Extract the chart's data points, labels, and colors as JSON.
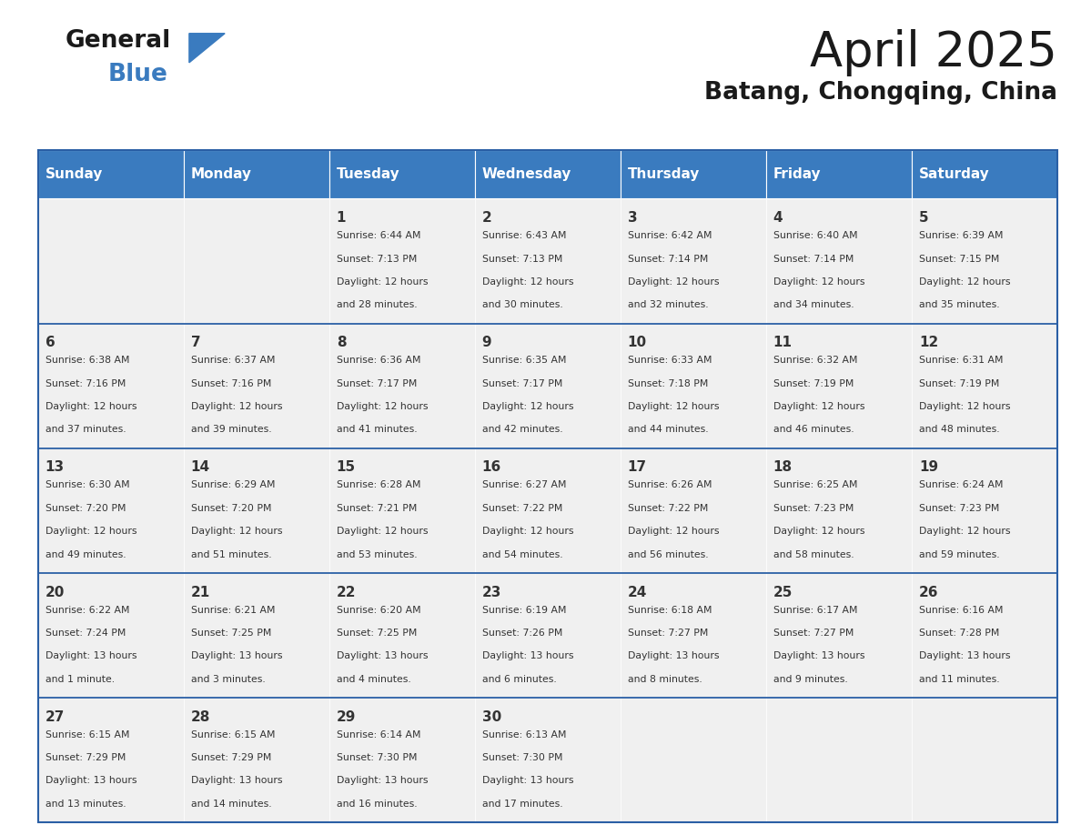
{
  "title": "April 2025",
  "subtitle": "Batang, Chongqing, China",
  "header_color": "#3a7bbf",
  "header_text_color": "#ffffff",
  "cell_bg_color": "#f0f0f0",
  "border_color": "#2a5fa5",
  "text_color": "#333333",
  "days_of_week": [
    "Sunday",
    "Monday",
    "Tuesday",
    "Wednesday",
    "Thursday",
    "Friday",
    "Saturday"
  ],
  "weeks": [
    [
      {
        "day": "",
        "sunrise": "",
        "sunset": "",
        "daylight": ""
      },
      {
        "day": "",
        "sunrise": "",
        "sunset": "",
        "daylight": ""
      },
      {
        "day": "1",
        "sunrise": "6:44 AM",
        "sunset": "7:13 PM",
        "daylight": "12 hours and 28 minutes."
      },
      {
        "day": "2",
        "sunrise": "6:43 AM",
        "sunset": "7:13 PM",
        "daylight": "12 hours and 30 minutes."
      },
      {
        "day": "3",
        "sunrise": "6:42 AM",
        "sunset": "7:14 PM",
        "daylight": "12 hours and 32 minutes."
      },
      {
        "day": "4",
        "sunrise": "6:40 AM",
        "sunset": "7:14 PM",
        "daylight": "12 hours and 34 minutes."
      },
      {
        "day": "5",
        "sunrise": "6:39 AM",
        "sunset": "7:15 PM",
        "daylight": "12 hours and 35 minutes."
      }
    ],
    [
      {
        "day": "6",
        "sunrise": "6:38 AM",
        "sunset": "7:16 PM",
        "daylight": "12 hours and 37 minutes."
      },
      {
        "day": "7",
        "sunrise": "6:37 AM",
        "sunset": "7:16 PM",
        "daylight": "12 hours and 39 minutes."
      },
      {
        "day": "8",
        "sunrise": "6:36 AM",
        "sunset": "7:17 PM",
        "daylight": "12 hours and 41 minutes."
      },
      {
        "day": "9",
        "sunrise": "6:35 AM",
        "sunset": "7:17 PM",
        "daylight": "12 hours and 42 minutes."
      },
      {
        "day": "10",
        "sunrise": "6:33 AM",
        "sunset": "7:18 PM",
        "daylight": "12 hours and 44 minutes."
      },
      {
        "day": "11",
        "sunrise": "6:32 AM",
        "sunset": "7:19 PM",
        "daylight": "12 hours and 46 minutes."
      },
      {
        "day": "12",
        "sunrise": "6:31 AM",
        "sunset": "7:19 PM",
        "daylight": "12 hours and 48 minutes."
      }
    ],
    [
      {
        "day": "13",
        "sunrise": "6:30 AM",
        "sunset": "7:20 PM",
        "daylight": "12 hours and 49 minutes."
      },
      {
        "day": "14",
        "sunrise": "6:29 AM",
        "sunset": "7:20 PM",
        "daylight": "12 hours and 51 minutes."
      },
      {
        "day": "15",
        "sunrise": "6:28 AM",
        "sunset": "7:21 PM",
        "daylight": "12 hours and 53 minutes."
      },
      {
        "day": "16",
        "sunrise": "6:27 AM",
        "sunset": "7:22 PM",
        "daylight": "12 hours and 54 minutes."
      },
      {
        "day": "17",
        "sunrise": "6:26 AM",
        "sunset": "7:22 PM",
        "daylight": "12 hours and 56 minutes."
      },
      {
        "day": "18",
        "sunrise": "6:25 AM",
        "sunset": "7:23 PM",
        "daylight": "12 hours and 58 minutes."
      },
      {
        "day": "19",
        "sunrise": "6:24 AM",
        "sunset": "7:23 PM",
        "daylight": "12 hours and 59 minutes."
      }
    ],
    [
      {
        "day": "20",
        "sunrise": "6:22 AM",
        "sunset": "7:24 PM",
        "daylight": "13 hours and 1 minute."
      },
      {
        "day": "21",
        "sunrise": "6:21 AM",
        "sunset": "7:25 PM",
        "daylight": "13 hours and 3 minutes."
      },
      {
        "day": "22",
        "sunrise": "6:20 AM",
        "sunset": "7:25 PM",
        "daylight": "13 hours and 4 minutes."
      },
      {
        "day": "23",
        "sunrise": "6:19 AM",
        "sunset": "7:26 PM",
        "daylight": "13 hours and 6 minutes."
      },
      {
        "day": "24",
        "sunrise": "6:18 AM",
        "sunset": "7:27 PM",
        "daylight": "13 hours and 8 minutes."
      },
      {
        "day": "25",
        "sunrise": "6:17 AM",
        "sunset": "7:27 PM",
        "daylight": "13 hours and 9 minutes."
      },
      {
        "day": "26",
        "sunrise": "6:16 AM",
        "sunset": "7:28 PM",
        "daylight": "13 hours and 11 minutes."
      }
    ],
    [
      {
        "day": "27",
        "sunrise": "6:15 AM",
        "sunset": "7:29 PM",
        "daylight": "13 hours and 13 minutes."
      },
      {
        "day": "28",
        "sunrise": "6:15 AM",
        "sunset": "7:29 PM",
        "daylight": "13 hours and 14 minutes."
      },
      {
        "day": "29",
        "sunrise": "6:14 AM",
        "sunset": "7:30 PM",
        "daylight": "13 hours and 16 minutes."
      },
      {
        "day": "30",
        "sunrise": "6:13 AM",
        "sunset": "7:30 PM",
        "daylight": "13 hours and 17 minutes."
      },
      {
        "day": "",
        "sunrise": "",
        "sunset": "",
        "daylight": ""
      },
      {
        "day": "",
        "sunrise": "",
        "sunset": "",
        "daylight": ""
      },
      {
        "day": "",
        "sunrise": "",
        "sunset": "",
        "daylight": ""
      }
    ]
  ]
}
